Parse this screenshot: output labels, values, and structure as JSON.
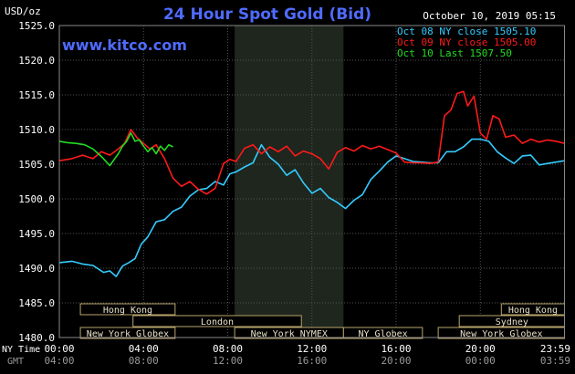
{
  "header": {
    "title": "24 Hour Spot Gold (Bid)",
    "units": "USD/oz",
    "timestamp": "October 10, 2019 05:15",
    "watermark": "www.kitco.com"
  },
  "legend": [
    {
      "label": "Oct 08 NY close 1505.10",
      "color": "#33ccff"
    },
    {
      "label": "Oct 09 NY close 1505.00",
      "color": "#ff1a1a"
    },
    {
      "label": "Oct 10 Last 1507.50",
      "color": "#22dd22"
    }
  ],
  "axis_labels": {
    "row1_label": "NY Time",
    "row2_label": "GMT"
  },
  "sessions": {
    "left": [
      {
        "name": "Hong Kong",
        "start": 1.0,
        "end": 5.5,
        "row": 0
      },
      {
        "name": "London",
        "start": 3.5,
        "end": 11.5,
        "row": 1
      },
      {
        "name": "New York Globex",
        "start": 1.0,
        "end": 5.5,
        "row": 2
      },
      {
        "name": "New York NYMEX",
        "start": 8.33,
        "end": 13.5,
        "row": 2
      },
      {
        "name": "NY Globex",
        "start": 13.5,
        "end": 17.25,
        "row": 2
      }
    ],
    "right": [
      {
        "name": "Hong Kong",
        "start": 21.0,
        "end": 24.0,
        "row": 0
      },
      {
        "name": "Sydney",
        "start": 19.0,
        "end": 24.0,
        "row": 1
      },
      {
        "name": "New York Globex",
        "start": 18.0,
        "end": 24.0,
        "row": 2
      }
    ]
  },
  "chart_data": {
    "type": "line",
    "ylim": [
      1480,
      1525
    ],
    "xlim": [
      0,
      24
    ],
    "y_ticks": [
      "1480.0",
      "1485.0",
      "1490.0",
      "1495.0",
      "1500.0",
      "1505.0",
      "1510.0",
      "1515.0",
      "1520.0",
      "1525.0"
    ],
    "y_tick_values": [
      1480,
      1485,
      1490,
      1495,
      1500,
      1505,
      1510,
      1515,
      1520,
      1525
    ],
    "x_ticks_ny": [
      "00:00",
      "04:00",
      "08:00",
      "12:00",
      "16:00",
      "20:00",
      "23:59"
    ],
    "x_ticks_gmt": [
      "04:00",
      "08:00",
      "12:00",
      "16:00",
      "20:00",
      "00:00",
      "03:59"
    ],
    "x_tick_values": [
      0,
      4,
      8,
      12,
      16,
      20,
      23.98
    ],
    "grid": true,
    "shaded_region": [
      8.33,
      13.5
    ],
    "series": [
      {
        "name": "Oct 08 NY close 1505.10",
        "color": "#33ccff",
        "x": [
          0,
          0.6,
          1.1,
          1.6,
          2.1,
          2.4,
          2.7,
          3.0,
          3.3,
          3.6,
          3.9,
          4.2,
          4.6,
          5.0,
          5.4,
          5.8,
          6.2,
          6.6,
          7.0,
          7.4,
          7.8,
          8.1,
          8.4,
          8.8,
          9.2,
          9.6,
          10.0,
          10.4,
          10.8,
          11.2,
          11.6,
          12.0,
          12.4,
          12.8,
          13.2,
          13.6,
          14.0,
          14.4,
          14.8,
          15.2,
          15.6,
          16.0,
          16.4,
          16.8,
          17.2,
          17.6,
          18.0,
          18.4,
          18.8,
          19.2,
          19.6,
          20.0,
          20.4,
          20.8,
          21.2,
          21.6,
          22.0,
          22.4,
          22.8,
          23.2,
          23.6,
          24.0
        ],
        "values": [
          1490.8,
          1491.0,
          1490.6,
          1490.4,
          1489.4,
          1489.6,
          1488.8,
          1490.3,
          1490.8,
          1491.4,
          1493.5,
          1494.5,
          1496.7,
          1497.0,
          1498.2,
          1498.8,
          1500.4,
          1501.3,
          1501.5,
          1502.5,
          1502.0,
          1503.6,
          1503.9,
          1504.6,
          1505.2,
          1507.8,
          1506.0,
          1505.0,
          1503.4,
          1504.2,
          1502.3,
          1500.8,
          1501.5,
          1500.2,
          1499.5,
          1498.6,
          1499.8,
          1500.6,
          1502.8,
          1504.0,
          1505.3,
          1506.2,
          1505.8,
          1505.4,
          1505.3,
          1505.2,
          1505.2,
          1506.8,
          1506.8,
          1507.5,
          1508.6,
          1508.6,
          1508.3,
          1506.8,
          1505.9,
          1505.1,
          1506.2,
          1506.3,
          1504.9,
          1505.1,
          1505.3,
          1505.5
        ]
      },
      {
        "name": "Oct 09 NY close 1505.00",
        "color": "#ff1a1a",
        "x": [
          0,
          0.6,
          1.1,
          1.6,
          2.0,
          2.4,
          2.8,
          3.1,
          3.4,
          3.7,
          4.0,
          4.3,
          4.6,
          5.0,
          5.4,
          5.8,
          6.2,
          6.6,
          7.0,
          7.4,
          7.8,
          8.1,
          8.4,
          8.8,
          9.2,
          9.6,
          10.0,
          10.4,
          10.8,
          11.2,
          11.6,
          12.0,
          12.4,
          12.8,
          13.2,
          13.6,
          14.0,
          14.4,
          14.8,
          15.2,
          15.6,
          16.0,
          16.4,
          16.8,
          17.2,
          17.6,
          18.0,
          18.1,
          18.3,
          18.6,
          18.9,
          19.2,
          19.4,
          19.7,
          20.0,
          20.3,
          20.6,
          20.9,
          21.2,
          21.6,
          22.0,
          22.4,
          22.8,
          23.2,
          23.6,
          24.0
        ],
        "values": [
          1505.5,
          1505.8,
          1506.3,
          1505.8,
          1506.8,
          1506.3,
          1507.2,
          1508.0,
          1510.0,
          1508.8,
          1508.0,
          1507.2,
          1507.8,
          1505.8,
          1503.0,
          1501.8,
          1502.5,
          1501.4,
          1500.7,
          1501.5,
          1505.1,
          1505.7,
          1505.4,
          1507.3,
          1507.8,
          1506.5,
          1507.5,
          1506.8,
          1507.6,
          1506.2,
          1506.9,
          1506.5,
          1505.8,
          1504.3,
          1506.7,
          1507.4,
          1506.9,
          1507.7,
          1507.2,
          1507.6,
          1507.1,
          1506.6,
          1505.3,
          1505.2,
          1505.2,
          1505.1,
          1505.3,
          1507.5,
          1512.0,
          1512.8,
          1515.2,
          1515.5,
          1513.4,
          1514.8,
          1509.5,
          1508.6,
          1512.0,
          1511.5,
          1508.9,
          1509.2,
          1508.0,
          1508.6,
          1508.2,
          1508.5,
          1508.3,
          1508.0
        ]
      },
      {
        "name": "Oct 10 Last 1507.50",
        "color": "#22dd22",
        "x": [
          0,
          0.4,
          0.8,
          1.2,
          1.6,
          2.0,
          2.4,
          2.8,
          3.0,
          3.2,
          3.4,
          3.6,
          3.8,
          4.0,
          4.2,
          4.4,
          4.6,
          4.8,
          5.0,
          5.2,
          5.4
        ],
        "values": [
          1508.3,
          1508.1,
          1508.0,
          1507.8,
          1507.2,
          1506.1,
          1504.8,
          1506.5,
          1507.6,
          1508.3,
          1509.5,
          1508.3,
          1508.5,
          1507.6,
          1506.8,
          1507.4,
          1506.5,
          1507.6,
          1507.0,
          1507.8,
          1507.5
        ]
      }
    ]
  }
}
